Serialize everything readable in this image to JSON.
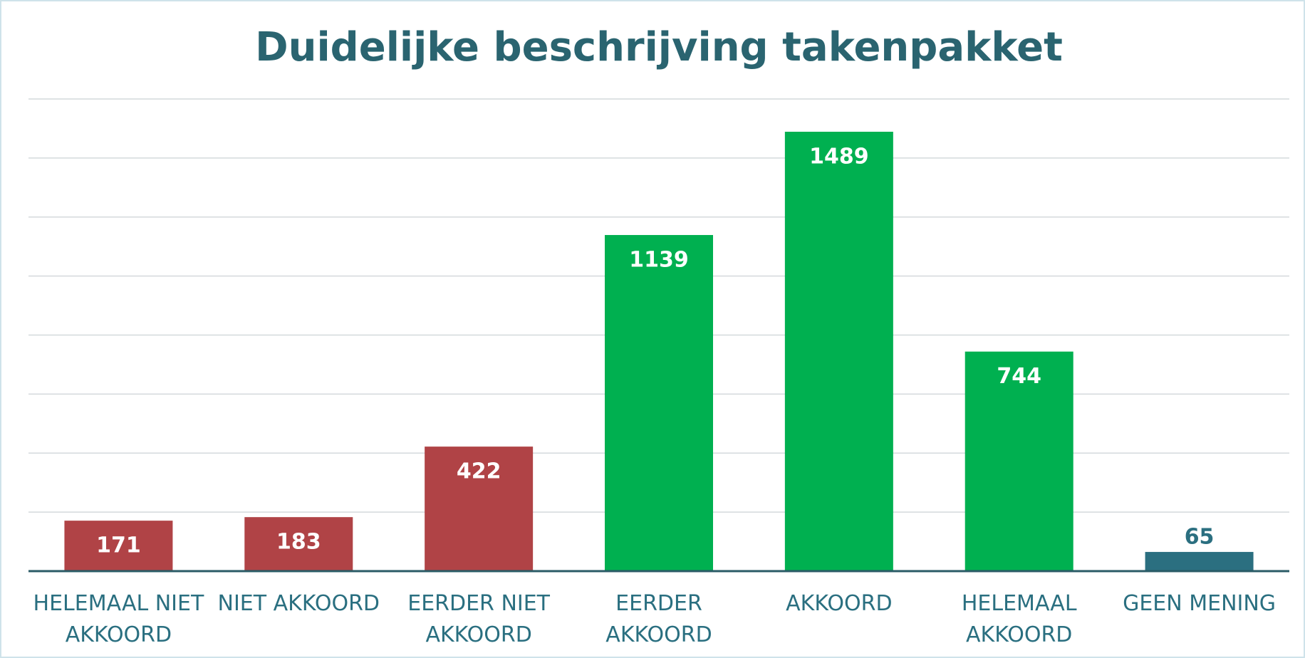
{
  "chart_data": {
    "type": "bar",
    "title": "Duidelijke beschrijving takenpakket",
    "categories": [
      "HELEMAAL NIET AKKOORD",
      "NIET AKKOORD",
      "EERDER NIET AKKOORD",
      "EERDER AKKOORD",
      "AKKOORD",
      "HELEMAAL AKKOORD",
      "GEEN MENING"
    ],
    "values": [
      171,
      183,
      422,
      1139,
      1489,
      744,
      65
    ],
    "colors": [
      "#b04346",
      "#b04346",
      "#b04346",
      "#00b050",
      "#00b050",
      "#00b050",
      "#2b6f80"
    ],
    "ylim": [
      0,
      1600
    ],
    "yticks": [
      0,
      200,
      400,
      600,
      800,
      1000,
      1200,
      1400,
      1600
    ],
    "grid": true
  }
}
